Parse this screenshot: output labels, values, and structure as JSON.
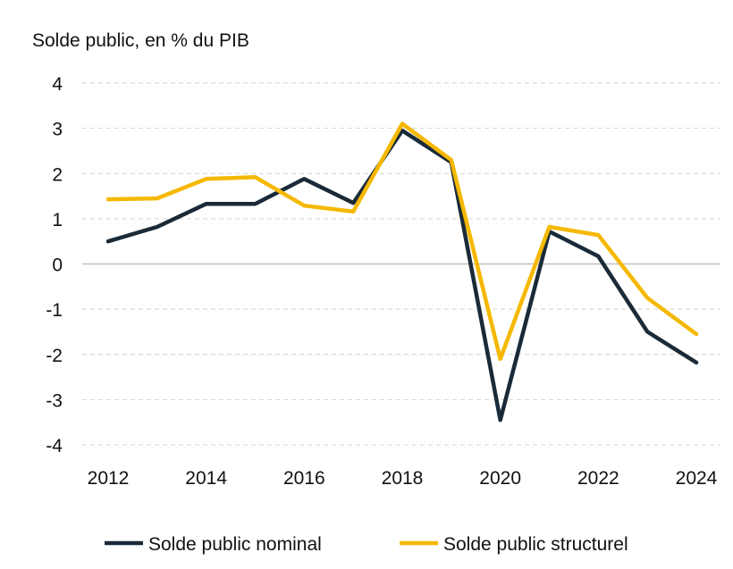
{
  "chart_data": {
    "type": "line",
    "ylabel": "Solde public, en % du PIB",
    "x": [
      2012,
      2013,
      2014,
      2015,
      2016,
      2017,
      2018,
      2019,
      2020,
      2021,
      2022,
      2023,
      2024
    ],
    "x_tick_labels": [
      "2012",
      "2014",
      "2016",
      "2018",
      "2020",
      "2022",
      "2024"
    ],
    "y_tick_labels": [
      "4",
      "3",
      "2",
      "1",
      "0",
      "-1",
      "-2",
      "-3",
      "-4"
    ],
    "ylim": [
      -4,
      4
    ],
    "grid": "horizontal-dashed",
    "legend_position": "bottom",
    "series": [
      {
        "name": "Solde public nominal",
        "color": "#1a2a38",
        "values": [
          0.5,
          0.82,
          1.33,
          1.33,
          1.88,
          1.35,
          2.95,
          2.25,
          -3.45,
          0.72,
          0.17,
          -1.5,
          -2.18
        ]
      },
      {
        "name": "Solde public structurel",
        "color": "#f5b800",
        "values": [
          1.43,
          1.45,
          1.88,
          1.92,
          1.29,
          1.16,
          3.1,
          2.3,
          -2.1,
          0.82,
          0.64,
          -0.75,
          -1.55
        ]
      }
    ]
  }
}
